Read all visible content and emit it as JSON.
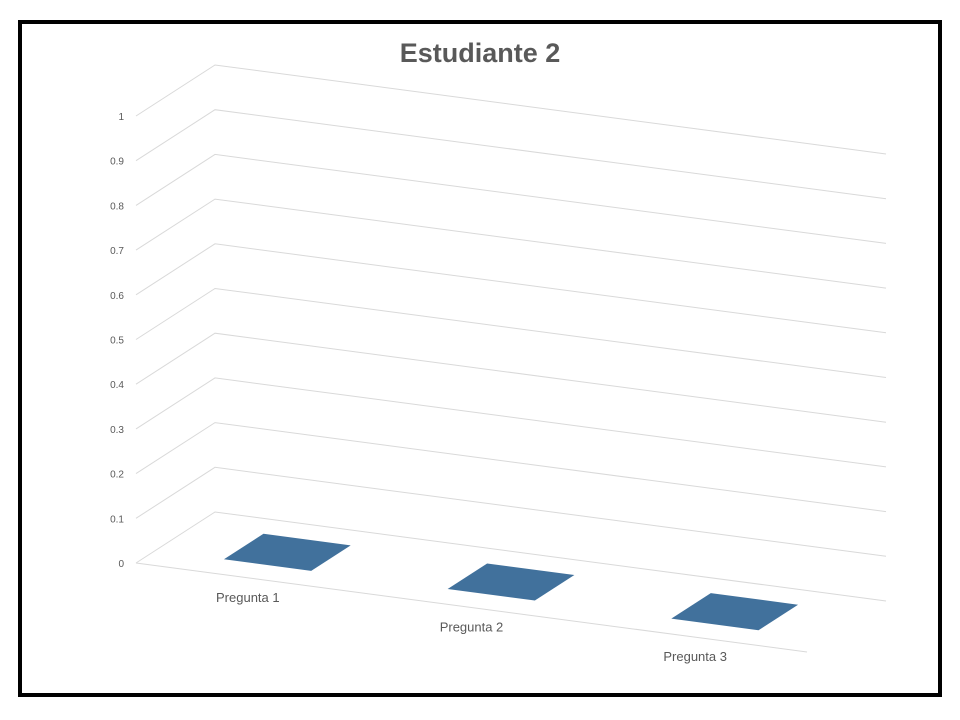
{
  "chart_data": {
    "type": "bar",
    "title": "Estudiante 2",
    "categories": [
      "Pregunta 1",
      "Pregunta 2",
      "Pregunta 3"
    ],
    "series": [
      {
        "values": [
          0,
          0,
          0
        ]
      }
    ],
    "ylim": [
      0,
      1
    ],
    "yticks": [
      "0",
      "0.1",
      "0.2",
      "0.3",
      "0.4",
      "0.5",
      "0.6",
      "0.7",
      "0.8",
      "0.9",
      "1"
    ],
    "grid": true,
    "legend": "none",
    "colors": {
      "series": "#41719c",
      "grid": "#d9d9d9",
      "text": "#595959",
      "frame": "#000000"
    }
  }
}
